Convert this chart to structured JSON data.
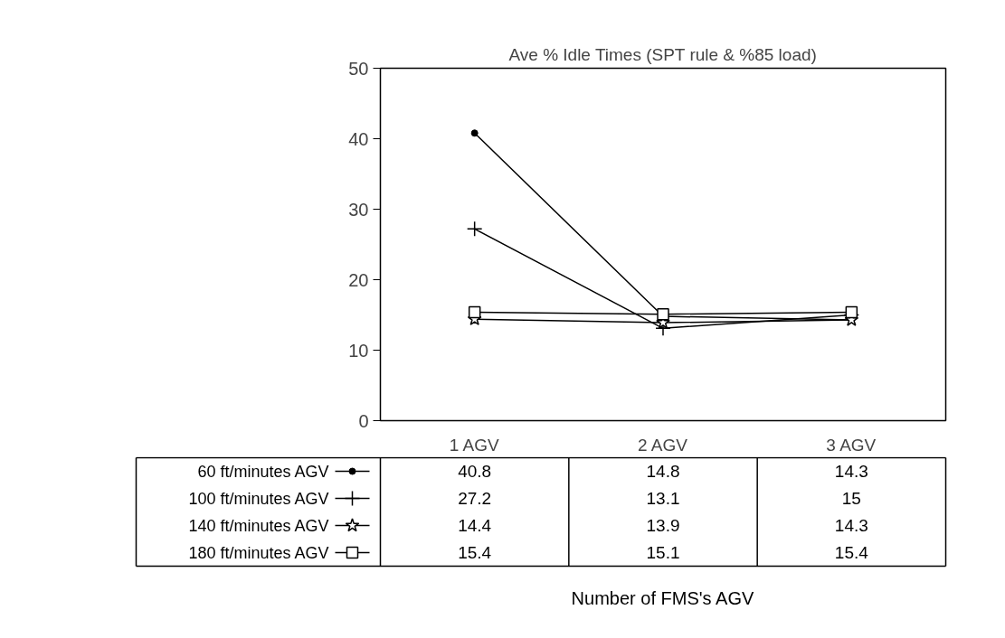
{
  "chart_data": {
    "type": "line",
    "title": "Ave % Idle Times (SPT rule & %85 load)",
    "annotations": [
      "Number of FMS's AGV"
    ],
    "categories": [
      "1 AGV",
      "2 AGV",
      "3 AGV"
    ],
    "series": [
      {
        "name": "60 ft/minutes AGV",
        "color": "#000000",
        "marker": "circle",
        "values": [
          40.8,
          14.8,
          14.3
        ]
      },
      {
        "name": "100 ft/minutes AGV",
        "color": "#000000",
        "marker": "cross",
        "values": [
          27.2,
          13.1,
          15
        ]
      },
      {
        "name": "140 ft/minutes AGV",
        "color": "#000000",
        "marker": "star",
        "values": [
          14.4,
          13.9,
          14.3
        ]
      },
      {
        "name": "180 ft/minutes AGV",
        "color": "#000000",
        "marker": "square",
        "values": [
          15.4,
          15.1,
          15.4
        ]
      }
    ],
    "ylim": [
      0,
      50
    ],
    "yticks": [
      0,
      10,
      20,
      30,
      40,
      50
    ],
    "grid": false,
    "data_labels": true,
    "legend": "left",
    "line_style": "solid"
  }
}
